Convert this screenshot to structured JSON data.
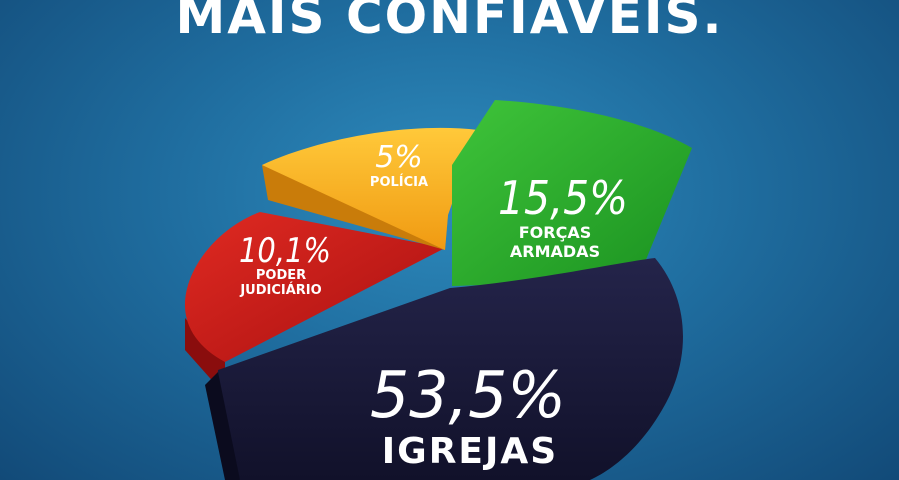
{
  "title": "MAIS CONFIÁVEIS.",
  "colors": {
    "igrejas": "#1a1a33",
    "forcas_armadas": "#22a528",
    "policia": "#f5a61c",
    "poder_judiciario": "#c81d1d"
  },
  "chart_data": {
    "type": "pie",
    "title": "MAIS CONFIÁVEIS.",
    "slices": [
      {
        "label": "IGREJAS",
        "value": 53.5,
        "value_label": "53,5%"
      },
      {
        "label": "FORÇAS ARMADAS",
        "value": 15.5,
        "value_label": "15,5%"
      },
      {
        "label": "POLÍCIA",
        "value": 5,
        "value_label": "5%"
      },
      {
        "label": "PODER JUDICIÁRIO",
        "value": 10.1,
        "value_label": "10,1%"
      }
    ]
  }
}
